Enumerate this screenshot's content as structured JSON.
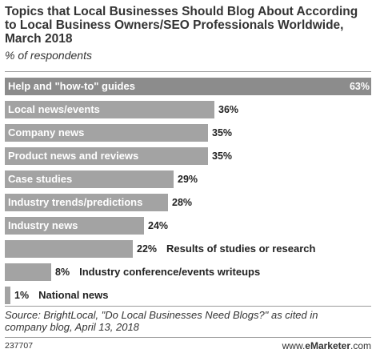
{
  "chart_data": {
    "type": "bar",
    "orientation": "horizontal",
    "title": "Topics that Local Businesses Should Blog About According to Local Business Owners/SEO Professionals Worldwide, March 2018",
    "subtitle": "% of respondents",
    "categories": [
      "Help and \"how-to\" guides",
      "Local news/events",
      "Company news",
      "Product news and reviews",
      "Case studies",
      "Industry trends/predictions",
      "Industry news",
      "Results of studies or research",
      "Industry conference/events writeups",
      "National news"
    ],
    "values": [
      63,
      36,
      35,
      35,
      29,
      28,
      24,
      22,
      8,
      1
    ],
    "value_labels": [
      "63%",
      "36%",
      "35%",
      "35%",
      "29%",
      "28%",
      "24%",
      "22%",
      "8%",
      "1%"
    ],
    "xlim": [
      0,
      63
    ],
    "grid": false,
    "bar_color": "#a3a3a3"
  },
  "footer": {
    "source": "Source: BrightLocal, \"Do Local Businesses Need Blogs?\" as cited in company blog, April 13, 2018",
    "chart_id": "237707",
    "brand_prefix": "www.",
    "brand_name": "eMarketer",
    "brand_suffix": ".com"
  }
}
